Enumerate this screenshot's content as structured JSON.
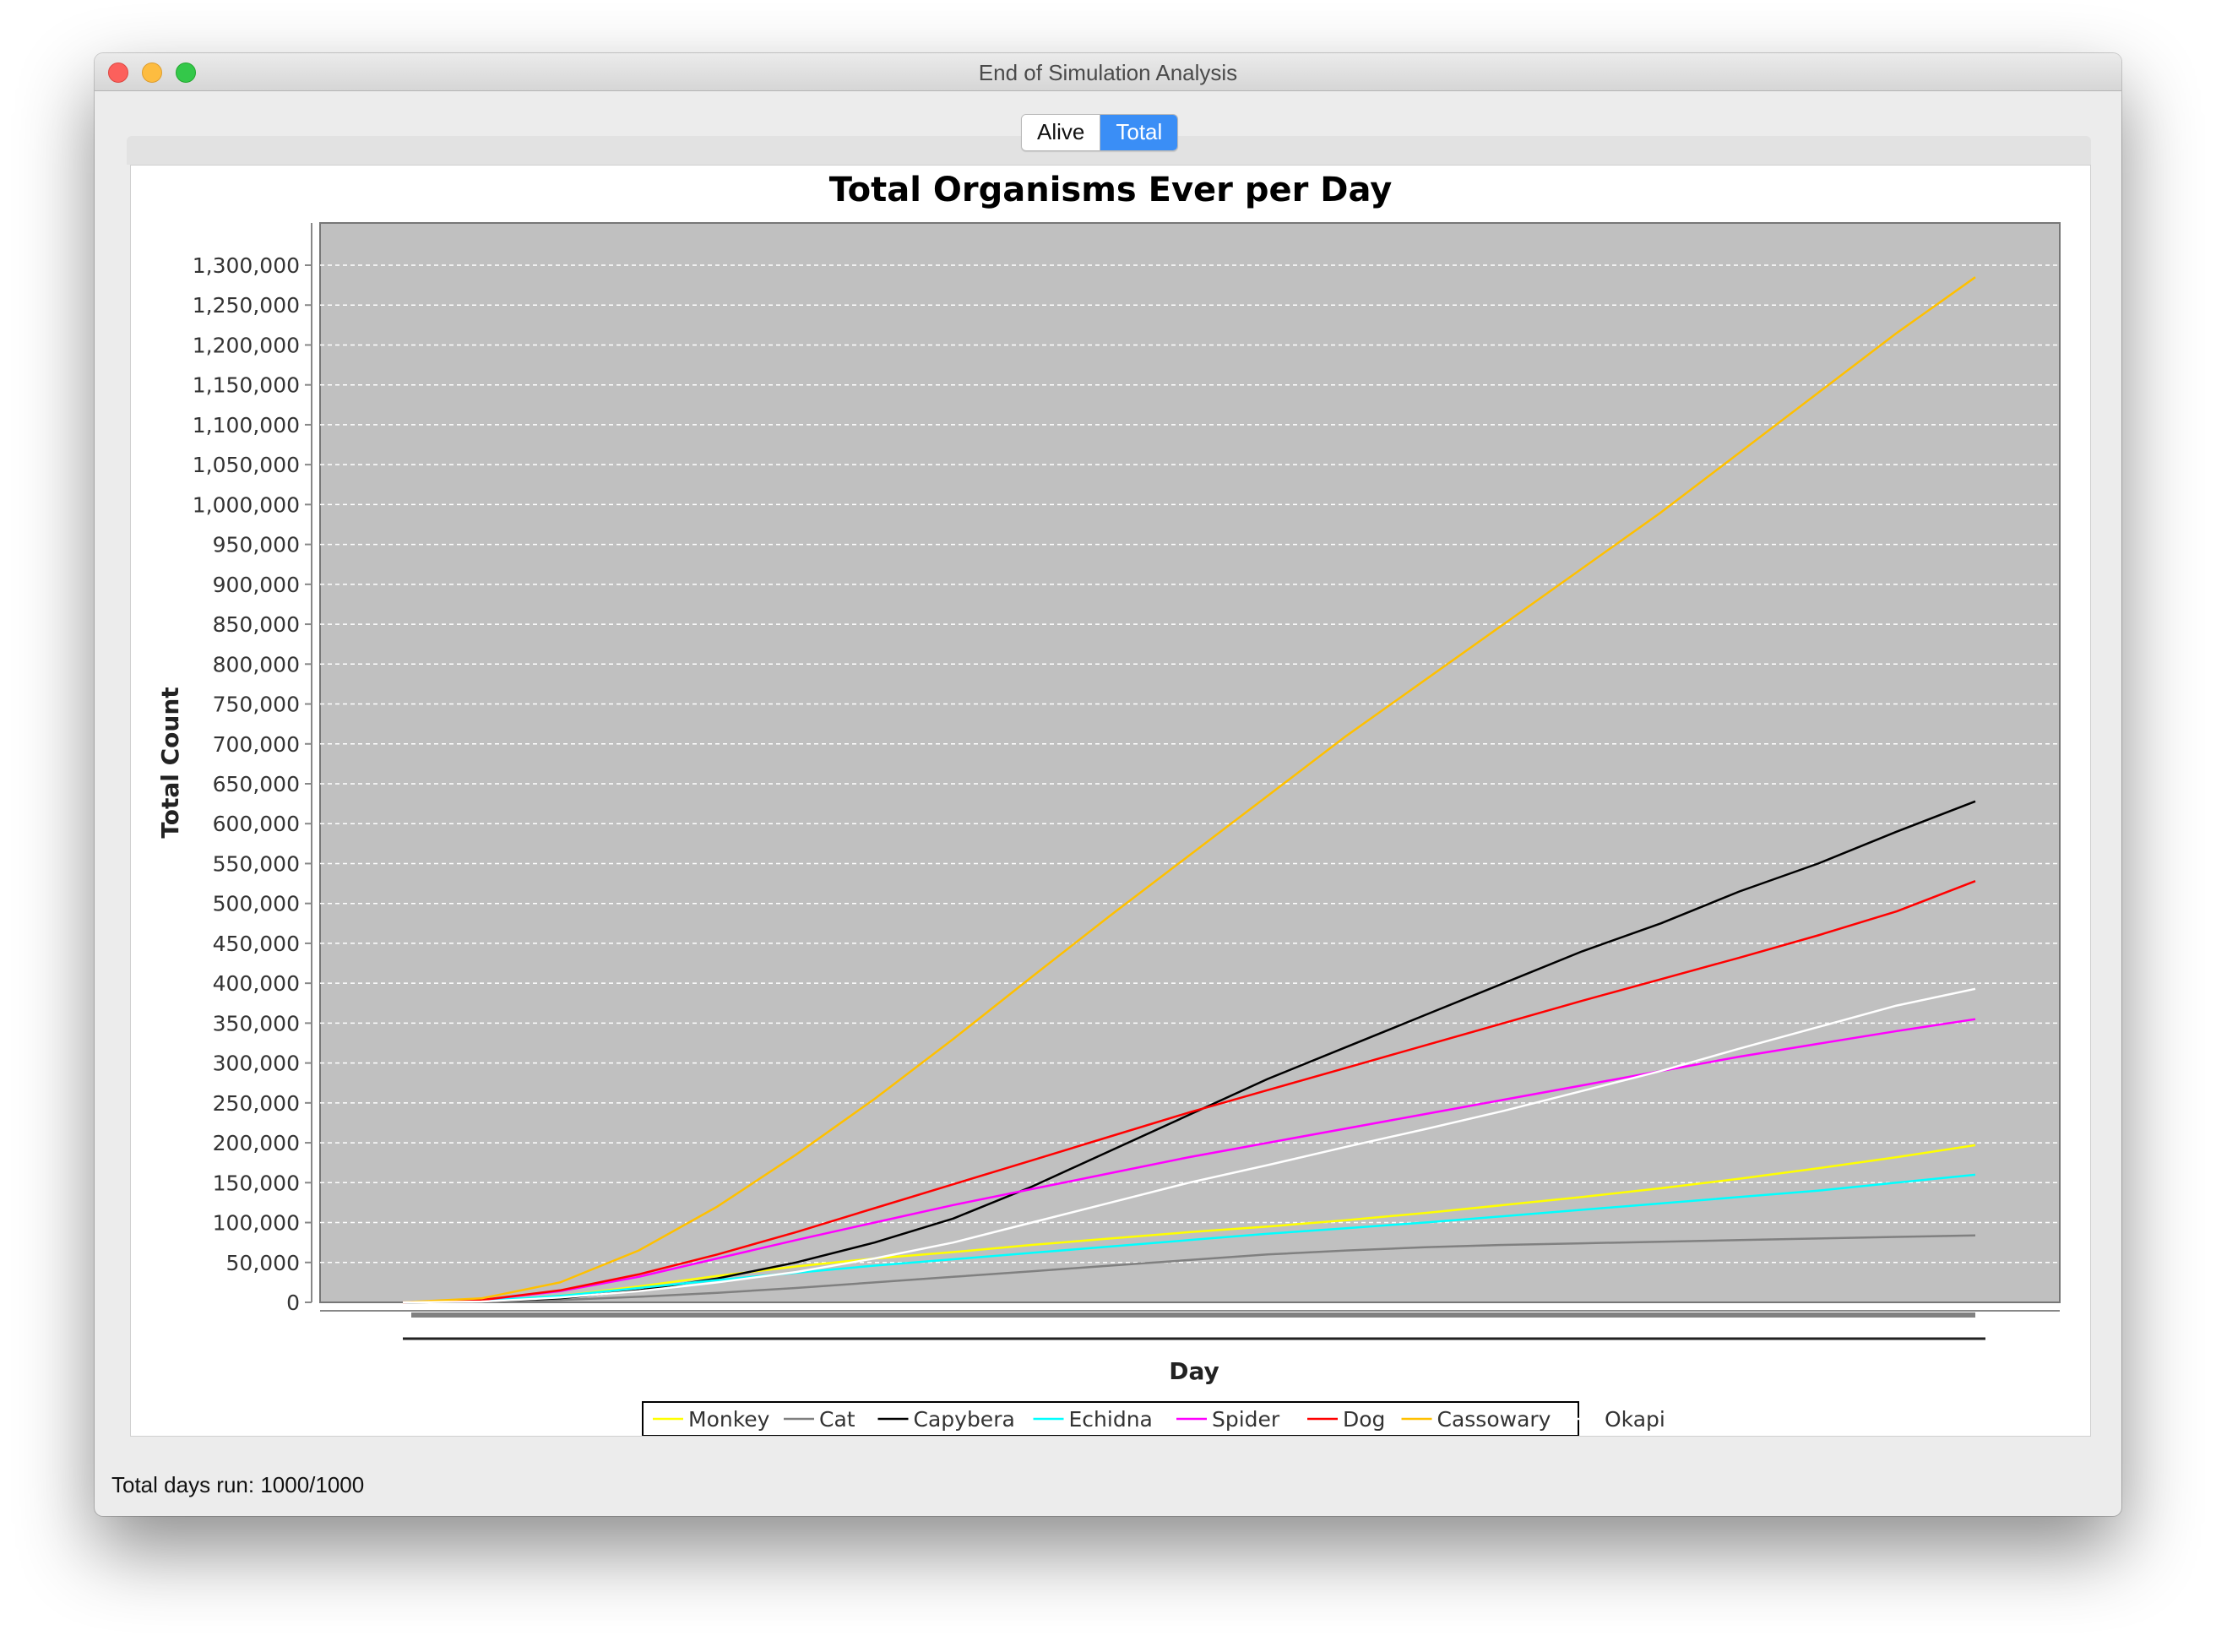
{
  "window": {
    "title": "End of Simulation Analysis"
  },
  "tabs": [
    {
      "label": "Alive",
      "selected": false
    },
    {
      "label": "Total",
      "selected": true
    }
  ],
  "status": {
    "text": "Total days run: 1000/1000"
  },
  "chart_data": {
    "type": "line",
    "title": "Total Organisms Ever per Day",
    "xlabel": "Day",
    "ylabel": "Total Count",
    "x_range": [
      0,
      1000
    ],
    "ylim": [
      0,
      1350000
    ],
    "y_ticks": [
      0,
      50000,
      100000,
      150000,
      200000,
      250000,
      300000,
      350000,
      400000,
      450000,
      500000,
      550000,
      600000,
      650000,
      700000,
      750000,
      800000,
      850000,
      900000,
      950000,
      1000000,
      1050000,
      1100000,
      1150000,
      1200000,
      1250000,
      1300000
    ],
    "y_tick_labels": [
      "0",
      "50,000",
      "100,000",
      "150,000",
      "200,000",
      "250,000",
      "300,000",
      "350,000",
      "400,000",
      "450,000",
      "500,000",
      "550,000",
      "600,000",
      "650,000",
      "700,000",
      "750,000",
      "800,000",
      "850,000",
      "900,000",
      "950,000",
      "1,000,000",
      "1,050,000",
      "1,100,000",
      "1,150,000",
      "1,200,000",
      "1,250,000",
      "1,300,000"
    ],
    "grid": true,
    "background": "#c0c0c0",
    "legend_position": "bottom",
    "x": [
      0,
      50,
      100,
      150,
      200,
      250,
      300,
      350,
      400,
      450,
      500,
      550,
      600,
      650,
      700,
      750,
      800,
      850,
      900,
      950,
      1000
    ],
    "series": [
      {
        "name": "Monkey",
        "color": "#ffff00",
        "values": [
          0,
          2000,
          8000,
          20000,
          33000,
          45000,
          55000,
          63000,
          72000,
          80000,
          88000,
          95000,
          103000,
          112000,
          122000,
          132000,
          143000,
          155000,
          168000,
          182000,
          197000
        ]
      },
      {
        "name": "Cat",
        "color": "#808080",
        "values": [
          0,
          1000,
          3000,
          7000,
          12000,
          18000,
          25000,
          32000,
          39000,
          46000,
          53000,
          60000,
          65000,
          69000,
          72000,
          74000,
          76000,
          78000,
          80000,
          82000,
          84000
        ]
      },
      {
        "name": "Capybera",
        "color": "#000000",
        "values": [
          0,
          1000,
          5000,
          15000,
          30000,
          50000,
          75000,
          105000,
          145000,
          190000,
          235000,
          280000,
          320000,
          360000,
          400000,
          440000,
          475000,
          515000,
          550000,
          590000,
          628000
        ]
      },
      {
        "name": "Echidna",
        "color": "#00ffff",
        "values": [
          0,
          2000,
          8000,
          18000,
          28000,
          37000,
          46000,
          54000,
          62000,
          70000,
          78000,
          86000,
          93000,
          100000,
          108000,
          116000,
          124000,
          132000,
          140000,
          150000,
          160000
        ]
      },
      {
        "name": "Spider",
        "color": "#ff00ff",
        "values": [
          0,
          3000,
          14000,
          32000,
          55000,
          78000,
          100000,
          122000,
          142000,
          162000,
          182000,
          200000,
          218000,
          236000,
          254000,
          272000,
          290000,
          308000,
          324000,
          340000,
          355000
        ]
      },
      {
        "name": "Dog",
        "color": "#ff0000",
        "values": [
          0,
          3000,
          15000,
          35000,
          60000,
          88000,
          118000,
          148000,
          178000,
          208000,
          238000,
          266000,
          294000,
          322000,
          350000,
          378000,
          405000,
          432000,
          460000,
          490000,
          528000
        ]
      },
      {
        "name": "Cassowary",
        "color": "#ffc000",
        "values": [
          0,
          5000,
          25000,
          65000,
          120000,
          185000,
          255000,
          330000,
          408000,
          485000,
          560000,
          635000,
          710000,
          780000,
          850000,
          920000,
          990000,
          1065000,
          1140000,
          1215000,
          1285000
        ]
      },
      {
        "name": "Okapi",
        "color": "#ffffff",
        "values": [
          0,
          1000,
          6000,
          14000,
          25000,
          38000,
          55000,
          75000,
          100000,
          125000,
          150000,
          172000,
          195000,
          217000,
          240000,
          265000,
          290000,
          318000,
          345000,
          372000,
          393000
        ]
      }
    ]
  }
}
